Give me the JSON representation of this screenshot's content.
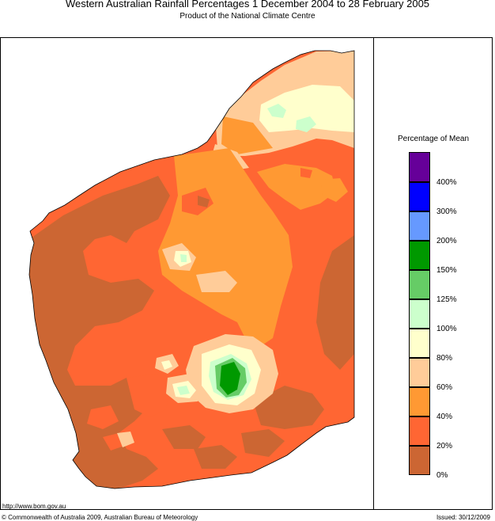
{
  "title": "Western Australian Rainfall Percentages 1 December 2004 to 28 February 2005",
  "subtitle": "Product of the National Climate Centre",
  "legend": {
    "title": "Percentage of Mean",
    "classes": [
      {
        "color": "#660099"
      },
      {
        "label": "400%",
        "color": "#0000ff"
      },
      {
        "label": "300%",
        "color": "#6699ff"
      },
      {
        "label": "200%",
        "color": "#009900"
      },
      {
        "label": "150%",
        "color": "#66cc66"
      },
      {
        "label": "125%",
        "color": "#ccffcc"
      },
      {
        "label": "100%",
        "color": "#ffffcc"
      },
      {
        "label": "80%",
        "color": "#ffcc99"
      },
      {
        "label": "60%",
        "color": "#ff9933"
      },
      {
        "label": "40%",
        "color": "#ff6633"
      },
      {
        "label": "20%",
        "color": "#cc6633"
      },
      {
        "label": "0%"
      }
    ]
  },
  "footer": {
    "url": "http://www.bom.gov.au",
    "copyright": "© Commonwealth of Australia 2009, Australian Bureau of Meteorology",
    "issued": "Issued: 30/12/2009"
  }
}
